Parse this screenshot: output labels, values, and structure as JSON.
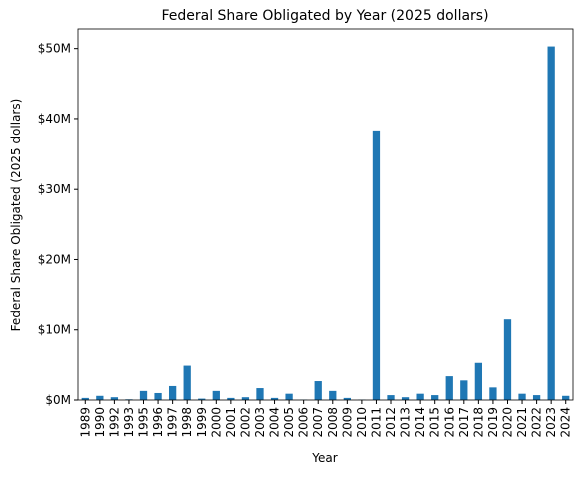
{
  "chart_data": {
    "type": "bar",
    "title": "Federal Share Obligated by Year (2025 dollars)",
    "x_label": "Year",
    "y_label": "Federal Share Obligated (2025 dollars)",
    "categories": [
      "1989",
      "1990",
      "1992",
      "1993",
      "1995",
      "1996",
      "1997",
      "1998",
      "1999",
      "2000",
      "2001",
      "2002",
      "2003",
      "2004",
      "2005",
      "2006",
      "2007",
      "2008",
      "2009",
      "2010",
      "2011",
      "2012",
      "2013",
      "2014",
      "2015",
      "2016",
      "2017",
      "2018",
      "2019",
      "2020",
      "2021",
      "2022",
      "2023",
      "2024"
    ],
    "values": [
      0.3,
      0.6,
      0.4,
      0.1,
      1.3,
      1.0,
      2.0,
      4.9,
      0.2,
      1.3,
      0.3,
      0.4,
      1.7,
      0.3,
      0.9,
      0.05,
      2.7,
      1.3,
      0.3,
      0.05,
      38.3,
      0.7,
      0.4,
      0.9,
      0.7,
      3.4,
      2.8,
      5.3,
      1.8,
      11.5,
      0.9,
      0.7,
      50.3,
      0.6
    ],
    "color": "#1f77b4",
    "ylim": [
      0,
      52.8
    ],
    "yticks": [
      {
        "value": 0,
        "label": "$0M"
      },
      {
        "value": 10,
        "label": "$10M"
      },
      {
        "value": 20,
        "label": "$20M"
      },
      {
        "value": 30,
        "label": "$30M"
      },
      {
        "value": 40,
        "label": "$40M"
      },
      {
        "value": 50,
        "label": "$50M"
      }
    ],
    "grid": false
  }
}
